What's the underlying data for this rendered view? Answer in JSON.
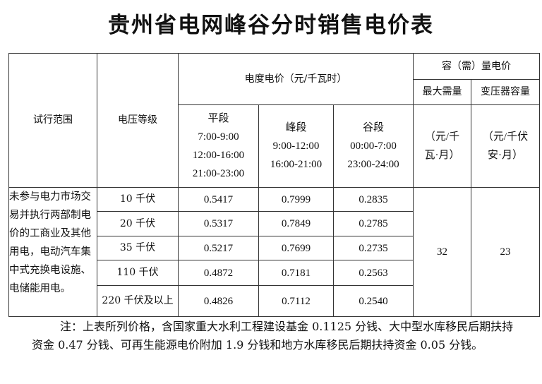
{
  "title": "贵州省电网峰谷分时销售电价表",
  "table": {
    "headers": {
      "scope": "试行范围",
      "voltage": "电压等级",
      "energy_price": "电度电价（元/千瓦时）",
      "capacity_price": "容（需）量电价",
      "max_demand": "最大需量",
      "transformer": "变压器容量",
      "flat": {
        "label": "平段",
        "times": [
          "7:00-9:00",
          "12:00-16:00",
          "21:00-23:00"
        ]
      },
      "peak": {
        "label": "峰段",
        "times": [
          "9:00-12:00",
          "16:00-21:00"
        ]
      },
      "valley": {
        "label": "谷段",
        "times": [
          "00:00-7:00",
          "23:00-24:00"
        ]
      },
      "max_demand_unit": [
        "（元/千",
        "瓦·月）"
      ],
      "transformer_unit": [
        "（元/千伏",
        "安·月）"
      ]
    },
    "scope_text": "未参与电力市场交易并执行两部制电价的工商业及其他用电，电动汽车集中式充换电设施、电储能用电。",
    "rows": [
      {
        "voltage": "10 千伏",
        "flat": "0.5417",
        "peak": "0.7999",
        "valley": "0.2835"
      },
      {
        "voltage": "20 千伏",
        "flat": "0.5317",
        "peak": "0.7849",
        "valley": "0.2785"
      },
      {
        "voltage": "35 千伏",
        "flat": "0.5217",
        "peak": "0.7699",
        "valley": "0.2735"
      },
      {
        "voltage": "110 千伏",
        "flat": "0.4872",
        "peak": "0.7181",
        "valley": "0.2563"
      },
      {
        "voltage": "220 千伏及以上",
        "flat": "0.4826",
        "peak": "0.7112",
        "valley": "0.2540"
      }
    ],
    "max_demand_value": "32",
    "transformer_value": "23"
  },
  "note": "注：上表所列价格，含国家重大水利工程建设基金 0.1125 分钱、大中型水库移民后期扶持资金 0.47 分钱、可再生能源电价附加 1.9 分钱和地方水库移民后期扶持资金 0.05 分钱。"
}
